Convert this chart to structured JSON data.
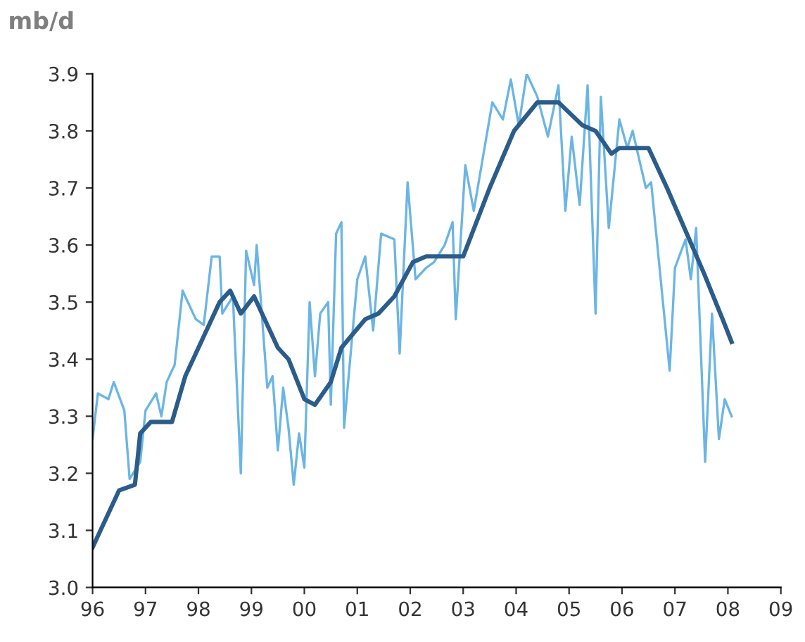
{
  "chart_data": {
    "type": "line",
    "ylabel": "mb/d",
    "xlim": [
      1996,
      2009
    ],
    "xticks": [
      {
        "value": 1996,
        "label": "96"
      },
      {
        "value": 1997,
        "label": "97"
      },
      {
        "value": 1998,
        "label": "98"
      },
      {
        "value": 1999,
        "label": "99"
      },
      {
        "value": 2000,
        "label": "00"
      },
      {
        "value": 2001,
        "label": "01"
      },
      {
        "value": 2002,
        "label": "02"
      },
      {
        "value": 2003,
        "label": "03"
      },
      {
        "value": 2004,
        "label": "04"
      },
      {
        "value": 2005,
        "label": "05"
      },
      {
        "value": 2006,
        "label": "06"
      },
      {
        "value": 2007,
        "label": "07"
      },
      {
        "value": 2008,
        "label": "08"
      },
      {
        "value": 2009,
        "label": "09"
      }
    ],
    "ylim": [
      3.0,
      3.9
    ],
    "yticks": [
      {
        "value": 3.0,
        "label": "3.0"
      },
      3.1,
      3.2,
      3.3,
      3.4,
      3.5,
      3.6,
      3.7,
      3.8,
      3.9
    ],
    "grid": false,
    "marker": "none",
    "line_style": "solid",
    "series": [
      {
        "color": "#6bb5e5",
        "x": [
          1996.0,
          1996.1,
          1996.3,
          1996.4,
          1996.6,
          1996.7,
          1996.9,
          1997.0,
          1997.2,
          1997.3,
          1997.4,
          1997.55,
          1997.7,
          1997.95,
          1998.1,
          1998.25,
          1998.4,
          1998.45,
          1998.65,
          1998.8,
          1998.9,
          1999.05,
          1999.1,
          1999.3,
          1999.4,
          1999.5,
          1999.6,
          1999.7,
          1999.8,
          1999.9,
          2000.0,
          2000.1,
          2000.2,
          2000.3,
          2000.45,
          2000.5,
          2000.6,
          2000.7,
          2000.75,
          2001.0,
          2001.15,
          2001.3,
          2001.45,
          2001.7,
          2001.8,
          2001.95,
          2002.1,
          2002.3,
          2002.45,
          2002.65,
          2002.8,
          2002.86,
          2003.04,
          2003.2,
          2003.55,
          2003.75,
          2003.9,
          2004.05,
          2004.2,
          2004.4,
          2004.6,
          2004.8,
          2004.93,
          2005.05,
          2005.2,
          2005.35,
          2005.5,
          2005.6,
          2005.75,
          2005.95,
          2006.1,
          2006.2,
          2006.45,
          2006.55,
          2006.9,
          2007.0,
          2007.2,
          2007.3,
          2007.4,
          2007.57,
          2007.7,
          2007.83,
          2007.94,
          2008.07
        ],
        "values": [
          3.26,
          3.34,
          3.33,
          3.36,
          3.31,
          3.19,
          3.22,
          3.31,
          3.34,
          3.3,
          3.36,
          3.39,
          3.52,
          3.47,
          3.46,
          3.58,
          3.58,
          3.48,
          3.51,
          3.2,
          3.59,
          3.53,
          3.6,
          3.35,
          3.37,
          3.24,
          3.35,
          3.28,
          3.18,
          3.27,
          3.21,
          3.5,
          3.37,
          3.48,
          3.5,
          3.32,
          3.62,
          3.64,
          3.28,
          3.54,
          3.58,
          3.45,
          3.62,
          3.61,
          3.41,
          3.71,
          3.54,
          3.56,
          3.57,
          3.6,
          3.64,
          3.47,
          3.74,
          3.66,
          3.85,
          3.82,
          3.89,
          3.81,
          3.9,
          3.86,
          3.79,
          3.88,
          3.66,
          3.79,
          3.67,
          3.88,
          3.48,
          3.86,
          3.63,
          3.82,
          3.77,
          3.8,
          3.7,
          3.71,
          3.38,
          3.56,
          3.61,
          3.54,
          3.63,
          3.22,
          3.48,
          3.26,
          3.33,
          3.3
        ]
      },
      {
        "color": "#2b5c8a",
        "x": [
          1996.0,
          1996.5,
          1996.8,
          1996.9,
          1997.1,
          1997.5,
          1997.75,
          1998.1,
          1998.4,
          1998.6,
          1998.8,
          1999.05,
          1999.5,
          1999.7,
          2000.0,
          2000.2,
          2000.5,
          2000.7,
          2001.15,
          2001.4,
          2001.7,
          2002.05,
          2002.3,
          2003.0,
          2003.5,
          2003.96,
          2004.4,
          2004.8,
          2005.25,
          2005.5,
          2005.8,
          2005.95,
          2006.5,
          2006.85,
          2007.55,
          2007.9,
          2008.07
        ],
        "values": [
          3.07,
          3.17,
          3.18,
          3.27,
          3.29,
          3.29,
          3.37,
          3.44,
          3.5,
          3.52,
          3.48,
          3.51,
          3.42,
          3.4,
          3.33,
          3.32,
          3.36,
          3.42,
          3.47,
          3.48,
          3.51,
          3.57,
          3.58,
          3.58,
          3.7,
          3.8,
          3.85,
          3.85,
          3.81,
          3.8,
          3.76,
          3.77,
          3.77,
          3.7,
          3.55,
          3.47,
          3.43
        ]
      }
    ]
  }
}
